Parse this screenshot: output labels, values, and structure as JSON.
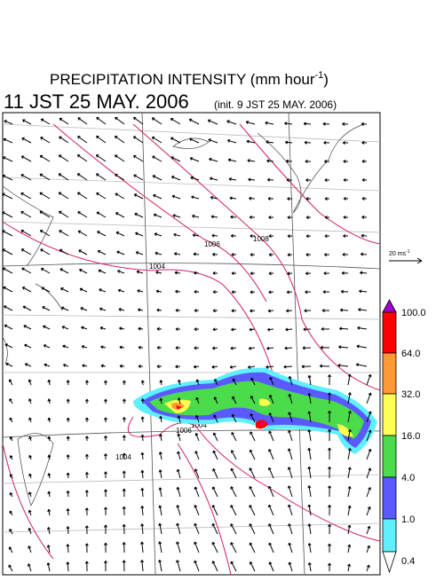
{
  "title": {
    "main": "PRECIPITATION INTENSITY (mm hour",
    "sup": "-1",
    "close": ")"
  },
  "valid_time": "11 JST 25 MAY. 2006",
  "init_time": "(init. 9 JST 25 MAY. 2006)",
  "vector_scale": {
    "value": "20 ms",
    "sup": "-1"
  },
  "colorbar": {
    "labels": [
      "100.0",
      "64.0",
      "32.0",
      "16.0",
      "4.0",
      "1.0",
      "0.4"
    ]
  },
  "contours": {
    "labels": [
      "1004",
      "1006",
      "1008",
      "1006",
      "1004",
      "1004"
    ]
  }
}
